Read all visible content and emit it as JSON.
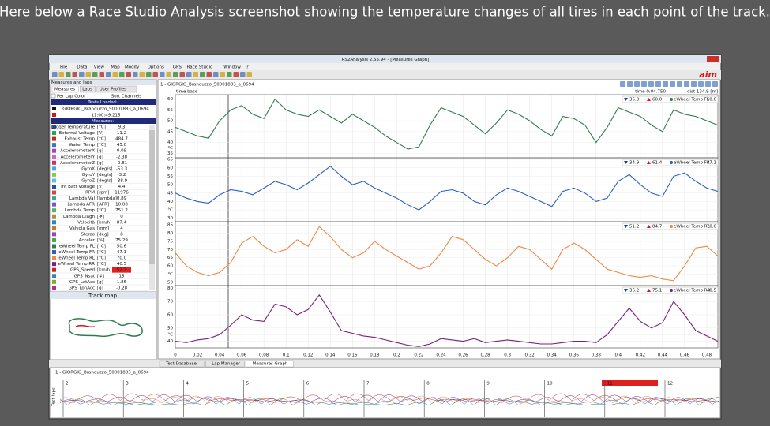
{
  "caption": "Here below a Race Studio Analysis screenshot showing the temperature changes of all tires in each point of the track.",
  "window": {
    "title": "RS2Analysis 2.55.94 - [Measures Graph]",
    "logo": "aim",
    "menu": [
      "File",
      "Data",
      "View",
      "Map",
      "Modify",
      "Options",
      "GPS",
      "Race Studio",
      "Window",
      "?"
    ]
  },
  "left_panel": {
    "title": "Measures and laps",
    "tabs": [
      "Measures",
      "Laps",
      "User Profiles"
    ],
    "per_lap_color": "Per Lap Color",
    "sort": "Sort Channels",
    "tests_loaded": "Tests Loaded:",
    "test_name": "GIORGIO_Branduzzo_50001883_a_0694",
    "time": "11:00:49.215",
    "measures_header": "Measures:",
    "measures": [
      [
        "Logger Temperature",
        "[°C]",
        "9.3",
        "#3355aa"
      ],
      [
        "External Voltage",
        "[V]",
        "11.2",
        "#22aa44"
      ],
      [
        "Exhaust Temp",
        "[°C]",
        "484.7",
        "#cc2222"
      ],
      [
        "Water Temp",
        "[°C]",
        "45.0",
        "#3377cc"
      ],
      [
        "AccelerometerX",
        "[g]",
        "0.09",
        "#aa44aa"
      ],
      [
        "AccelerometerY",
        "[g]",
        "-2.38",
        "#cc66cc"
      ],
      [
        "AccelerometerZ",
        "[g]",
        "-0.81",
        "#cc3366"
      ],
      [
        "GyroX",
        "[deg/s]",
        "-53.3",
        "#44aadd"
      ],
      [
        "GyroY",
        "[deg/s]",
        "-3.2",
        "#88cc44"
      ],
      [
        "GyroZ",
        "[deg/s]",
        "-38.9",
        "#66bbee"
      ],
      [
        "Int Batt Voltage",
        "[V]",
        "4.4",
        "#225599"
      ],
      [
        "RPM",
        "[rpm]",
        "11976",
        "#dd4444"
      ],
      [
        "Lambda Val",
        "[lambda]",
        "0.89",
        "#33aa99"
      ],
      [
        "Lambda AFR",
        "[AFR]",
        "10.08",
        "#7755cc"
      ],
      [
        "Lambda Temp",
        "[°C]",
        "751.2",
        "#44bb66"
      ],
      [
        "Lambda Diagn",
        "[#]",
        "0",
        "#bb8833"
      ],
      [
        "Velocità",
        "[km/h]",
        "87.4",
        "#2288cc"
      ],
      [
        "Valvola Gas",
        "[mm]",
        "4",
        "#cc7722"
      ],
      [
        "Sterzo",
        "[deg]",
        "8",
        "#9944bb"
      ],
      [
        "Acceler",
        "[%]",
        "75.29",
        "#44aa44"
      ],
      [
        "eWheel Temp FL",
        "[°C]",
        "50.6",
        "#2f7d4e"
      ],
      [
        "eWheel Temp FR",
        "[°C]",
        "47.1",
        "#2a5fc0"
      ],
      [
        "eWheel Temp RL",
        "[°C]",
        "70.0",
        "#ee8844"
      ],
      [
        "eWheel Temp RR",
        "[°C]",
        "40.5",
        "#7a1f7a"
      ],
      [
        "GPS_Speed",
        "[km/h]",
        "52.3",
        "#cc2222"
      ],
      [
        "GPS_Nsat",
        "[#]",
        "15",
        "#3388aa"
      ],
      [
        "GPS_LatAcc",
        "[g]",
        "1.86",
        "#88aa22"
      ],
      [
        "GPS_LonAcc",
        "[g]",
        "-0.28",
        "#aa3388"
      ]
    ]
  },
  "track_map": {
    "title": "Track map"
  },
  "graph": {
    "tab": "1 - GIORGIO_Branduzzo_50001883_a_0694",
    "time_base": "time base",
    "time_info": "time 0:04.750",
    "dist": "dist 134.9 [m]",
    "xlim": [
      0,
      0.49
    ],
    "xticks": [
      0,
      0.02,
      0.04,
      0.06,
      0.08,
      0.1,
      0.12,
      0.14,
      0.16,
      0.18,
      0.2,
      0.22,
      0.24,
      0.26,
      0.28,
      0.3,
      0.32,
      0.34,
      0.36,
      0.38,
      0.4,
      0.42,
      0.44,
      0.46,
      0.48
    ],
    "x": [
      0,
      0.01,
      0.02,
      0.03,
      0.04,
      0.05,
      0.06,
      0.07,
      0.08,
      0.09,
      0.1,
      0.11,
      0.12,
      0.13,
      0.14,
      0.15,
      0.16,
      0.17,
      0.18,
      0.19,
      0.2,
      0.21,
      0.22,
      0.23,
      0.24,
      0.25,
      0.26,
      0.27,
      0.28,
      0.29,
      0.3,
      0.31,
      0.32,
      0.33,
      0.34,
      0.35,
      0.36,
      0.37,
      0.38,
      0.39,
      0.4,
      0.41,
      0.42,
      0.43,
      0.44,
      0.45,
      0.46,
      0.47,
      0.48,
      0.49
    ],
    "panels": [
      {
        "name": "eWheel Temp FL",
        "color": "#2f7d4e",
        "min": "35.3",
        "max": "60.0",
        "current": "50.6",
        "ylim": [
          33,
          62
        ],
        "yticks": [
          60,
          55,
          50,
          45,
          40,
          {
            "value": 37.5,
            "label": "°C"
          },
          35
        ],
        "values": [
          47,
          45,
          43,
          42,
          50,
          55,
          57,
          53,
          51,
          60,
          55,
          53,
          52,
          55,
          52,
          49,
          53,
          50,
          47,
          43,
          40,
          37,
          38,
          48,
          56,
          54,
          52,
          48,
          44,
          49,
          55,
          53,
          50,
          46,
          43,
          52,
          51,
          48,
          40,
          47,
          56,
          54,
          52,
          48,
          45,
          55,
          53,
          52,
          50,
          48
        ]
      },
      {
        "name": "eWheel Temp FR",
        "color": "#2a5fc0",
        "min": "34.9",
        "max": "61.4",
        "current": "47.1",
        "ylim": [
          28,
          66
        ],
        "yticks": [
          65,
          60,
          55,
          50,
          45,
          40,
          {
            "value": 35,
            "label": "°C"
          },
          30
        ],
        "values": [
          45,
          42,
          40,
          39,
          44,
          47,
          46,
          44,
          48,
          52,
          50,
          47,
          51,
          56,
          61,
          55,
          50,
          52,
          48,
          45,
          42,
          38,
          35,
          40,
          46,
          47,
          45,
          40,
          38,
          44,
          48,
          46,
          43,
          40,
          37,
          46,
          48,
          45,
          40,
          42,
          52,
          56,
          50,
          45,
          43,
          55,
          57,
          52,
          48,
          46
        ]
      },
      {
        "name": "eWheel Temp RL",
        "color": "#ee8844",
        "min": "51.2",
        "max": "84.7",
        "current": "70.0",
        "ylim": [
          48,
          87
        ],
        "yticks": [
          85,
          80,
          75,
          70,
          65,
          60,
          {
            "value": 55,
            "label": "°C"
          },
          50
        ],
        "values": [
          68,
          60,
          56,
          54,
          56,
          62,
          74,
          78,
          72,
          68,
          70,
          76,
          72,
          84,
          78,
          70,
          65,
          68,
          75,
          70,
          66,
          62,
          58,
          60,
          68,
          78,
          76,
          70,
          64,
          60,
          65,
          72,
          70,
          64,
          58,
          70,
          74,
          70,
          64,
          58,
          56,
          54,
          53,
          54,
          52,
          51,
          60,
          71,
          72,
          66
        ]
      },
      {
        "name": "eWheel Temp RR",
        "color": "#7a1f7a",
        "min": "36.2",
        "max": "75.1",
        "current": "40.5",
        "ylim": [
          35,
          82
        ],
        "yticks": [
          80,
          70,
          60,
          50,
          {
            "value": 45,
            "label": "°C"
          },
          40
        ],
        "values": [
          40,
          39,
          41,
          42,
          45,
          52,
          60,
          56,
          55,
          68,
          66,
          60,
          64,
          75,
          62,
          48,
          46,
          44,
          43,
          41,
          39,
          37,
          36,
          38,
          42,
          41,
          40,
          42,
          39,
          40,
          41,
          40,
          39,
          38,
          38,
          39,
          40,
          40,
          39,
          45,
          55,
          65,
          55,
          50,
          54,
          70,
          60,
          48,
          44,
          40
        ]
      }
    ]
  },
  "bottom_tabs": [
    "Test Database",
    "Lap Manager",
    "Measures Graph"
  ],
  "overview": {
    "tab": "1 - GIORGIO_Branduzzo_50001883_a_0694",
    "label": "Test laps",
    "laps": [
      "2",
      "3",
      "4",
      "5",
      "6",
      "7",
      "8",
      "9",
      "10",
      "11",
      "12"
    ]
  }
}
